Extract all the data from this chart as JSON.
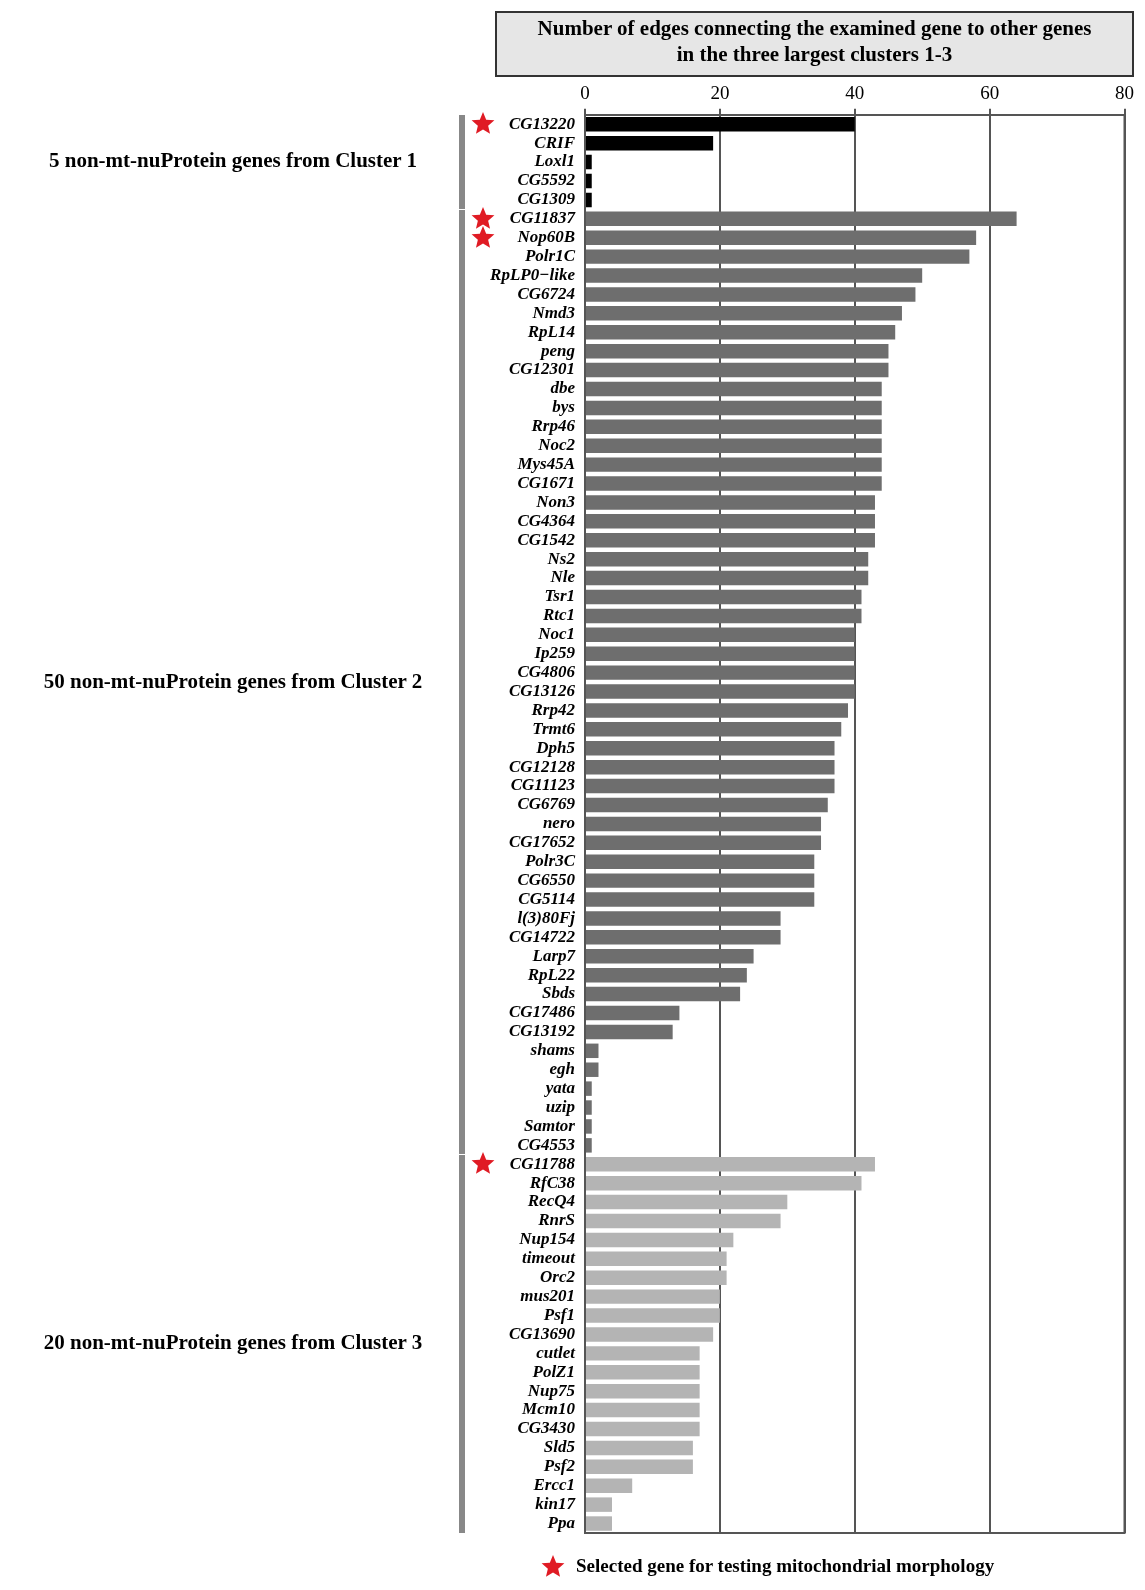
{
  "chart_data": {
    "type": "bar",
    "orientation": "horizontal",
    "stacked": true,
    "title": "Number of edges connecting the examined gene to other genes\nin the three largest clusters 1-3",
    "categories": [
      "CG13220",
      "CRIF",
      "Loxl1",
      "CG5592",
      "CG1309",
      "CG11837",
      "Nop60B",
      "Polr1C",
      "RpLP0−like",
      "CG6724",
      "Nmd3",
      "RpL14",
      "peng",
      "CG12301",
      "dbe",
      "bys",
      "Rrp46",
      "Noc2",
      "Mys45A",
      "CG1671",
      "Non3",
      "CG4364",
      "CG1542",
      "Ns2",
      "Nle",
      "Tsr1",
      "Rtc1",
      "Noc1",
      "Ip259",
      "CG4806",
      "CG13126",
      "Rrp42",
      "Trmt6",
      "Dph5",
      "CG12128",
      "CG11123",
      "CG6769",
      "nero",
      "CG17652",
      "Polr3C",
      "CG6550",
      "CG5114",
      "l(3)80Fj",
      "CG14722",
      "Larp7",
      "RpL22",
      "Sbds",
      "CG17486",
      "CG13192",
      "shams",
      "egh",
      "yata",
      "uzip",
      "Samtor",
      "CG4553",
      "CG11788",
      "RfC38",
      "RecQ4",
      "RnrS",
      "Nup154",
      "timeout",
      "Orc2",
      "mus201",
      "Psf1",
      "CG13690",
      "cutlet",
      "PolZ1",
      "Nup75",
      "Mcm10",
      "CG3430",
      "Sld5",
      "Psf2",
      "Ercc1",
      "kin17",
      "Ppa"
    ],
    "series": [
      {
        "color": "#000000",
        "values": [
          40,
          19,
          1,
          1,
          1,
          null,
          null,
          null,
          null,
          null,
          null,
          null,
          null,
          null,
          null,
          null,
          null,
          null,
          null,
          null,
          null,
          null,
          null,
          null,
          null,
          null,
          null,
          null,
          null,
          null,
          null,
          null,
          null,
          null,
          null,
          null,
          null,
          null,
          null,
          null,
          null,
          null,
          null,
          null,
          null,
          null,
          null,
          null,
          null,
          null,
          null,
          null,
          null,
          null,
          null,
          null,
          null,
          null,
          null,
          null,
          null,
          null,
          null,
          null,
          null,
          null,
          null,
          null,
          null,
          null,
          null,
          null,
          null,
          null,
          null
        ]
      },
      {
        "color": "#6e6e6e",
        "values": [
          null,
          null,
          null,
          null,
          null,
          64,
          58,
          57,
          50,
          49,
          47,
          46,
          45,
          45,
          44,
          44,
          44,
          44,
          44,
          44,
          43,
          43,
          43,
          42,
          42,
          41,
          41,
          40,
          40,
          40,
          40,
          39,
          38,
          37,
          37,
          37,
          36,
          35,
          35,
          34,
          34,
          34,
          29,
          29,
          25,
          24,
          23,
          14,
          13,
          2,
          2,
          1,
          1,
          1,
          1,
          null,
          null,
          null,
          null,
          null,
          null,
          null,
          null,
          null,
          null,
          null,
          null,
          null,
          null,
          null,
          null,
          null,
          null,
          null,
          null
        ]
      },
      {
        "color": "#b4b4b4",
        "values": [
          null,
          null,
          null,
          null,
          null,
          null,
          null,
          null,
          null,
          null,
          null,
          null,
          null,
          null,
          null,
          null,
          null,
          null,
          null,
          null,
          null,
          null,
          null,
          null,
          null,
          null,
          null,
          null,
          null,
          null,
          null,
          null,
          null,
          null,
          null,
          null,
          null,
          null,
          null,
          null,
          null,
          null,
          null,
          null,
          null,
          null,
          null,
          null,
          null,
          null,
          null,
          null,
          null,
          null,
          null,
          43,
          41,
          30,
          29,
          22,
          21,
          21,
          20,
          20,
          19,
          17,
          17,
          17,
          17,
          17,
          16,
          16,
          7,
          4,
          4
        ]
      },
      {
        "type": "scatter",
        "name": "Selected gene for testing mitochondrial morphology",
        "color": "#e01b24",
        "marker": "star",
        "x": [
          "CG13220",
          "CG11837",
          "Nop60B",
          "CG11788"
        ],
        "values": [
          null,
          null,
          null,
          null
        ]
      }
    ],
    "annotations": [
      "5 non-mt-nuProtein genes from Cluster 1",
      "50 non-mt-nuProtein genes from Cluster 2",
      "20 non-mt-nuProtein genes from Cluster 3"
    ],
    "xlim": [
      0,
      80
    ],
    "xticks": [
      0,
      20,
      40,
      60,
      80
    ],
    "grid": "x",
    "legend": "bottom"
  }
}
